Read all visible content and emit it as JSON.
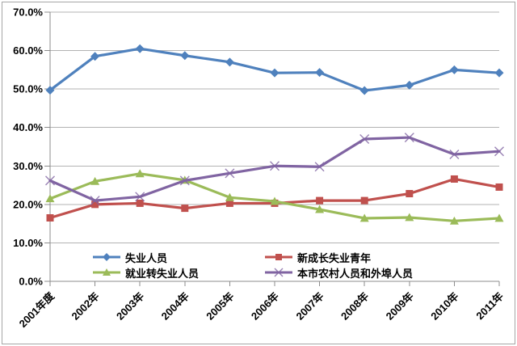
{
  "chart_data": {
    "type": "line",
    "title": "",
    "xlabel": "",
    "ylabel": "",
    "categories": [
      "2001年度",
      "2002年",
      "2003年",
      "2004年",
      "2005年",
      "2006年",
      "2007年",
      "2008年",
      "2009年",
      "2010年",
      "2011年"
    ],
    "y_tick_labels": [
      "0.0%",
      "10.0%",
      "20.0%",
      "30.0%",
      "40.0%",
      "50.0%",
      "60.0%",
      "70.0%"
    ],
    "ylim": [
      0,
      70
    ],
    "y_step": 10,
    "grid": true,
    "legend_position": "bottom-inside",
    "colors": {
      "grid": "#b3b3b3",
      "axis": "#8c8c8c",
      "frame_border": "#a6a6a6",
      "text": "#000000"
    },
    "series": [
      {
        "name": "失业人员",
        "color": "#4F81BD",
        "marker": "diamond",
        "values": [
          49.7,
          58.5,
          60.5,
          58.7,
          57.0,
          54.2,
          54.3,
          49.6,
          51.0,
          55.0,
          54.2
        ]
      },
      {
        "name": "新成长失业青年",
        "color": "#C0504D",
        "marker": "square",
        "values": [
          16.5,
          20.0,
          20.3,
          19.0,
          20.3,
          20.3,
          21.0,
          21.0,
          22.8,
          26.6,
          24.5
        ]
      },
      {
        "name": "就业转失业人员",
        "color": "#9BBB59",
        "marker": "triangle",
        "values": [
          21.5,
          26.0,
          28.0,
          26.3,
          21.8,
          20.8,
          18.7,
          16.4,
          16.6,
          15.7,
          16.4
        ]
      },
      {
        "name": "本市农村人员和外埠人员",
        "color": "#8064A2",
        "marker": "x",
        "values": [
          26.2,
          21.0,
          22.0,
          26.2,
          28.1,
          30.0,
          29.8,
          37.0,
          37.4,
          33.0,
          33.8
        ]
      }
    ]
  }
}
